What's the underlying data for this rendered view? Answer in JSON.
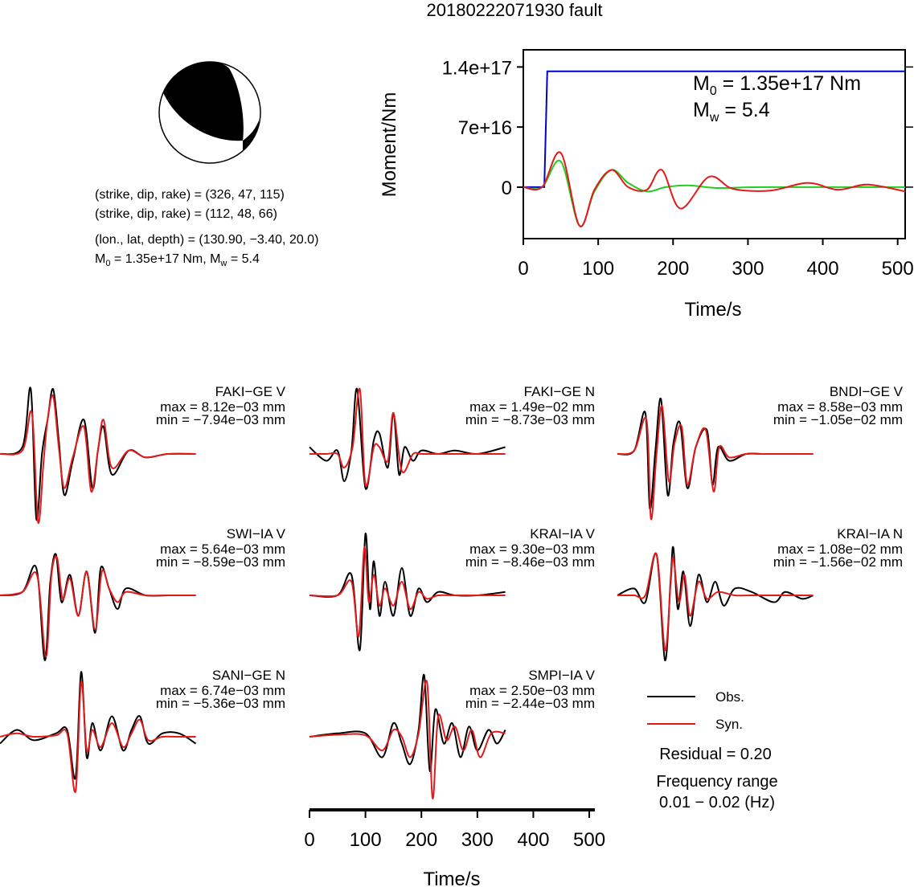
{
  "title": "20180222071930 fault",
  "mechanism": {
    "line1": "(strike, dip, rake) = (326, 47, 115)",
    "line2": "(strike, dip, rake) = (112, 48, 66)",
    "line3": "(lon., lat, depth) = (130.90, −3.40, 20.0)",
    "m0_label": "M",
    "m0_sub": "0",
    "m0_text": " = 1.35e+17 Nm, M",
    "mw_sub": "w",
    "mw_text": " = 5.4"
  },
  "colors": {
    "obs": "#000000",
    "syn": "#e31a1c",
    "moment": "#0000cc",
    "green": "#22cc22"
  },
  "chart_data": [
    {
      "type": "line",
      "title": "",
      "xlabel": "Time/s",
      "ylabel": "Moment/Nm",
      "xlim": [
        0,
        510
      ],
      "ylim": [
        -6e+16,
        1.6e+17
      ],
      "xticks": [
        0,
        100,
        200,
        300,
        400,
        500
      ],
      "xtick_labels": [
        "0",
        "100",
        "200",
        "300",
        "400",
        "500"
      ],
      "yticks": [
        0,
        7e+16,
        1.4e+17
      ],
      "ytick_labels": [
        "0",
        "7e+16",
        "1.4e+17"
      ],
      "annotation": {
        "m0": "M",
        "m0_sub": "0",
        "m0_text": " = 1.35e+17 Nm",
        "mw": "M",
        "mw_sub": "w",
        "mw_text": " = 5.4"
      },
      "series": [
        {
          "color": "#0000cc",
          "x": [
            0,
            28,
            32,
            510
          ],
          "y": [
            0,
            0,
            1.35e+17,
            1.35e+17
          ]
        },
        {
          "color": "#22cc22",
          "x": [
            0,
            25,
            50,
            75,
            95,
            118,
            140,
            165,
            190,
            220,
            260,
            320,
            510
          ],
          "y": [
            0,
            0,
            3e+16,
            -4.5e+16,
            -5000000000000000.0,
            2e+16,
            5000000000000000.0,
            -5000000000000000.0,
            0,
            2000000000000000.0,
            -1000000000000000.0,
            0,
            0
          ]
        },
        {
          "color": "#e31a1c",
          "x": [
            0,
            25,
            50,
            75,
            95,
            118,
            140,
            165,
            185,
            210,
            248,
            280,
            330,
            380,
            420,
            460,
            510
          ],
          "y": [
            0,
            0,
            4e+16,
            -4.5e+16,
            -3000000000000000.0,
            2e+16,
            0,
            -3000000000000000.0,
            2e+16,
            -2.5e+16,
            1.2e+16,
            -2000000000000000.0,
            -4000000000000000.0,
            5000000000000000.0,
            -3000000000000000.0,
            3000000000000000.0,
            -5000000000000000.0
          ]
        }
      ]
    },
    {
      "type": "line",
      "xlabel": "Time/s",
      "xlim": [
        0,
        510
      ],
      "xticks": [
        0,
        100,
        200,
        300,
        400,
        500
      ],
      "xtick_labels": [
        "0",
        "100",
        "200",
        "300",
        "400",
        "500"
      ],
      "ylim": [
        -1,
        1
      ],
      "legend": {
        "entries": [
          "Obs.",
          "Syn."
        ],
        "placement": "bottom-right"
      },
      "residual": "Residual = 0.20",
      "freq_label": "Frequency range",
      "freq_value": "0.01 − 0.02 (Hz)",
      "panels": [
        {
          "station": "FAKI−GE V",
          "max": "max = 8.12e−03 mm",
          "min": "min = −7.94e−03 mm",
          "obs": {
            "x": [
              0,
              40,
              55,
              65,
              75,
              85,
              95,
              105,
              115,
              130,
              150,
              165,
              175,
              185,
              200,
              230,
              260,
              300,
              350
            ],
            "y": [
              0,
              0.1,
              0.95,
              -0.95,
              0,
              0.5,
              0.95,
              0.2,
              -0.6,
              -0.1,
              0.5,
              -0.5,
              0.05,
              0.4,
              -0.3,
              0.05,
              -0.05,
              0,
              0
            ]
          },
          "syn": {
            "x": [
              0,
              40,
              57,
              68,
              78,
              85,
              95,
              105,
              115,
              130,
              150,
              163,
              175,
              185,
              200,
              230,
              260,
              300,
              350
            ],
            "y": [
              0,
              0.05,
              0.6,
              -1.0,
              -0.1,
              0.5,
              0.85,
              0.1,
              -0.5,
              -0.05,
              0.4,
              -0.55,
              0.05,
              0.5,
              -0.2,
              0.05,
              -0.05,
              0,
              0
            ]
          }
        },
        {
          "station": "FAKI−GE N",
          "max": "max = 1.49e−02 mm",
          "min": "min = −8.73e−03 mm",
          "obs": {
            "x": [
              0,
              30,
              50,
              62,
              75,
              85,
              100,
              115,
              125,
              140,
              150,
              160,
              170,
              185,
              200,
              230,
              260,
              300,
              350
            ],
            "y": [
              0.1,
              -0.1,
              0.05,
              -0.4,
              0.05,
              0.95,
              -0.5,
              0.2,
              0.3,
              -0.2,
              0.6,
              -0.3,
              0.1,
              -0.1,
              0.05,
              0,
              0.05,
              0,
              0.1
            ]
          },
          "syn": {
            "x": [
              0,
              30,
              50,
              62,
              77,
              90,
              100,
              115,
              125,
              140,
              150,
              165,
              185,
              200,
              230,
              260,
              300,
              350
            ],
            "y": [
              0,
              0,
              0,
              -0.2,
              0.1,
              0.95,
              -0.45,
              0.1,
              0.1,
              -0.1,
              0.6,
              -0.25,
              0,
              0,
              0,
              0,
              0,
              0
            ]
          }
        },
        {
          "station": "BNDI−GE V",
          "max": "max = 8.58e−03 mm",
          "min": "min = −1.05e−02 mm",
          "obs": {
            "x": [
              0,
              30,
              50,
              58,
              68,
              78,
              90,
              100,
              112,
              125,
              140,
              160,
              170,
              180,
              200,
              230,
              260,
              300,
              350
            ],
            "y": [
              0,
              0.05,
              0.6,
              -0.8,
              0.05,
              0.8,
              -0.6,
              0.15,
              0.45,
              -0.5,
              0.1,
              0.35,
              -0.45,
              0.1,
              -0.1,
              0,
              0,
              0,
              0
            ]
          },
          "syn": {
            "x": [
              0,
              30,
              52,
              60,
              70,
              80,
              92,
              102,
              115,
              125,
              140,
              158,
              172,
              182,
              200,
              230,
              260,
              300,
              350
            ],
            "y": [
              0,
              0.05,
              0.5,
              -0.95,
              0,
              0.7,
              -0.4,
              0.15,
              0.4,
              -0.45,
              0.1,
              0.35,
              -0.55,
              0.1,
              -0.05,
              0,
              0,
              0,
              0
            ]
          }
        },
        {
          "station": "SWI−IA V",
          "max": "max = 5.64e−03 mm",
          "min": "min = −8.59e−03 mm",
          "obs": {
            "x": [
              0,
              40,
              65,
              80,
              90,
              100,
              110,
              125,
              140,
              155,
              170,
              180,
              195,
              210,
              225,
              260,
              300,
              350
            ],
            "y": [
              0,
              0.05,
              0.4,
              -0.95,
              0.2,
              0.6,
              -0.1,
              0.3,
              -0.3,
              0.35,
              -0.55,
              0.4,
              0.1,
              -0.2,
              0.1,
              0,
              0,
              0
            ]
          },
          "syn": {
            "x": [
              0,
              40,
              66,
              82,
              92,
              102,
              112,
              125,
              140,
              155,
              170,
              182,
              195,
              210,
              225,
              260,
              300,
              350
            ],
            "y": [
              0,
              0.05,
              0.3,
              -0.9,
              0.3,
              0.55,
              -0.05,
              0.25,
              -0.3,
              0.35,
              -0.5,
              0.35,
              0.1,
              -0.1,
              0.05,
              0,
              0,
              0
            ]
          }
        },
        {
          "station": "KRAI−IA V",
          "max": "max = 9.30e−03 mm",
          "min": "min = −8.46e−03 mm",
          "obs": {
            "x": [
              0,
              50,
              75,
              90,
              100,
              108,
              115,
              125,
              135,
              150,
              165,
              180,
              195,
              210,
              230,
              260,
              300,
              350
            ],
            "y": [
              0,
              0,
              0.3,
              -0.8,
              0.9,
              -0.2,
              0.5,
              -0.3,
              0.2,
              -0.3,
              0.4,
              -0.3,
              0.1,
              -0.1,
              0.05,
              0,
              0,
              0.05
            ]
          },
          "syn": {
            "x": [
              0,
              50,
              75,
              88,
              98,
              106,
              115,
              125,
              135,
              150,
              165,
              180,
              195,
              210,
              230,
              260,
              300,
              350
            ],
            "y": [
              0,
              0,
              0.2,
              -0.6,
              0.7,
              -0.1,
              0.3,
              -0.15,
              0.1,
              -0.15,
              0.2,
              -0.2,
              0.05,
              -0.05,
              0,
              0,
              0,
              0
            ]
          }
        },
        {
          "station": "KRAI−IA N",
          "max": "max = 1.08e−02 mm",
          "min": "min = −1.56e−02 mm",
          "obs": {
            "x": [
              0,
              30,
              50,
              70,
              85,
              95,
              100,
              108,
              118,
              130,
              145,
              160,
              175,
              190,
              210,
              240,
              280,
              300,
              330,
              350
            ],
            "y": [
              0,
              0.1,
              -0.1,
              0.6,
              -0.95,
              0.2,
              0.7,
              -0.2,
              0.35,
              -0.45,
              0.3,
              -0.1,
              0.2,
              -0.15,
              0.1,
              0.05,
              -0.1,
              0.05,
              -0.05,
              0
            ]
          },
          "syn": {
            "x": [
              0,
              30,
              50,
              70,
              85,
              95,
              100,
              110,
              120,
              130,
              145,
              160,
              180,
              210,
              240,
              280,
              350
            ],
            "y": [
              0,
              0,
              0,
              0.6,
              -0.8,
              0.15,
              0.55,
              -0.1,
              0.3,
              -0.3,
              0.2,
              -0.05,
              0.05,
              0,
              0,
              0,
              0
            ]
          }
        },
        {
          "station": "SANI−GE N",
          "max": "max = 6.74e−03 mm",
          "min": "min = −5.36e−03 mm",
          "obs": {
            "x": [
              0,
              30,
              60,
              100,
              120,
              135,
              145,
              155,
              165,
              180,
              200,
              220,
              235,
              250,
              265,
              290,
              320,
              350
            ],
            "y": [
              -0.1,
              0.1,
              -0.05,
              0.05,
              0.1,
              -0.6,
              0.95,
              -0.3,
              0.2,
              -0.2,
              0.3,
              -0.2,
              0.1,
              0.3,
              -0.1,
              0.05,
              0.05,
              -0.1
            ]
          },
          "syn": {
            "x": [
              0,
              30,
              60,
              100,
              120,
              135,
              145,
              155,
              165,
              180,
              200,
              220,
              235,
              250,
              265,
              290,
              320,
              350
            ],
            "y": [
              0,
              0.05,
              0,
              0.02,
              0.05,
              -0.8,
              0.8,
              -0.2,
              0.1,
              -0.15,
              0.2,
              -0.15,
              0.05,
              0.25,
              -0.05,
              0,
              0,
              0
            ]
          }
        },
        {
          "station": "SMPI−IA V",
          "max": "max = 2.50e−03 mm",
          "min": "min = −2.44e−03 mm",
          "obs": {
            "x": [
              0,
              50,
              100,
              130,
              150,
              165,
              180,
              195,
              205,
              215,
              225,
              240,
              255,
              270,
              285,
              300,
              320,
              335,
              350
            ],
            "y": [
              0,
              0.05,
              0.05,
              -0.3,
              0.2,
              -0.1,
              -0.4,
              0.1,
              0.9,
              -0.5,
              0.4,
              -0.1,
              0.2,
              -0.3,
              0.15,
              -0.2,
              0.1,
              -0.1,
              0.1
            ]
          },
          "syn": {
            "x": [
              0,
              50,
              100,
              130,
              150,
              165,
              180,
              195,
              210,
              220,
              230,
              245,
              260,
              275,
              290,
              305,
              325,
              350
            ],
            "y": [
              0,
              0.03,
              0.02,
              -0.2,
              0.1,
              0,
              -0.3,
              0.05,
              0.8,
              -0.9,
              0.3,
              -0.05,
              0.15,
              -0.2,
              0.1,
              -0.3,
              0.05,
              0.05
            ]
          }
        }
      ]
    }
  ]
}
